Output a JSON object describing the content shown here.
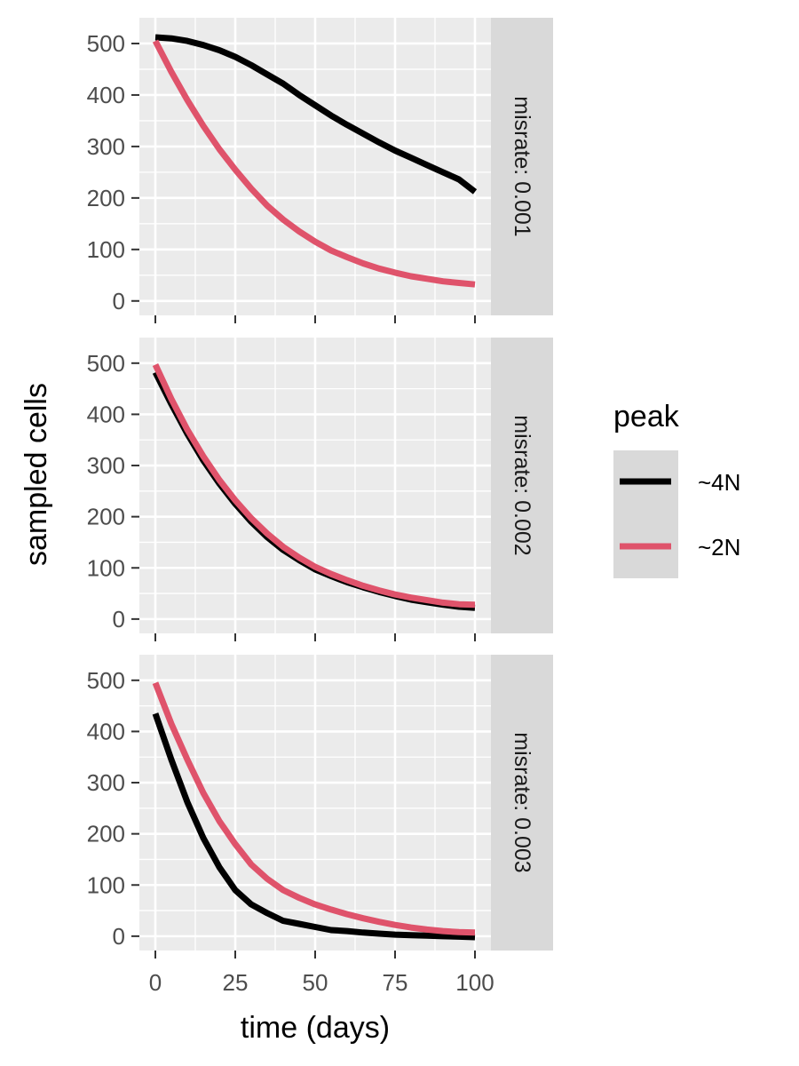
{
  "chart_data": {
    "type": "line",
    "xlabel": "time (days)",
    "ylabel": "sampled cells",
    "xlim": [
      -5,
      105
    ],
    "ylim": [
      -28,
      550
    ],
    "x_ticks": [
      0,
      25,
      50,
      75,
      100
    ],
    "x_tick_labels": [
      "0",
      "25",
      "50",
      "75",
      "100"
    ],
    "y_ticks": [
      0,
      100,
      200,
      300,
      400,
      500
    ],
    "y_tick_labels": [
      "0",
      "100",
      "200",
      "300",
      "400",
      "500"
    ],
    "grid": true,
    "legend": {
      "title": "peak",
      "placement": "right",
      "entries": [
        {
          "label": "~4N",
          "color": "#000000"
        },
        {
          "label": "~2N",
          "color": "#df536b"
        }
      ]
    },
    "x": [
      0,
      5,
      10,
      15,
      20,
      25,
      30,
      35,
      40,
      45,
      50,
      55,
      60,
      65,
      70,
      75,
      80,
      85,
      90,
      95,
      100
    ],
    "panels": [
      {
        "strip": "misrate: 0.001",
        "series": [
          {
            "name": "~4N",
            "color": "#000000",
            "values": [
              512,
              510,
              505,
              497,
              487,
              474,
              458,
              440,
              422,
              400,
              380,
              360,
              342,
              325,
              308,
              292,
              278,
              264,
              250,
              236,
              212
            ]
          },
          {
            "name": "~2N",
            "color": "#df536b",
            "values": [
              505,
              445,
              390,
              340,
              295,
              255,
              218,
              185,
              158,
              135,
              115,
              98,
              85,
              73,
              63,
              55,
              48,
              43,
              38,
              35,
              32
            ]
          }
        ]
      },
      {
        "strip": "misrate: 0.002",
        "series": [
          {
            "name": "~4N",
            "color": "#000000",
            "values": [
              482,
              420,
              362,
              310,
              265,
              225,
              190,
              160,
              135,
              115,
              97,
              84,
              72,
              62,
              53,
              45,
              38,
              33,
              28,
              24,
              22
            ]
          },
          {
            "name": "~2N",
            "color": "#df536b",
            "values": [
              497,
              430,
              370,
              318,
              272,
              232,
              197,
              167,
              141,
              120,
              102,
              88,
              76,
              65,
              56,
              48,
              42,
              37,
              32,
              29,
              28
            ]
          }
        ]
      },
      {
        "strip": "misrate: 0.003",
        "series": [
          {
            "name": "~4N",
            "color": "#000000",
            "values": [
              435,
              345,
              262,
              192,
              135,
              90,
              62,
              45,
              30,
              24,
              18,
              12,
              10,
              7,
              5,
              3,
              2,
              1,
              0,
              -1,
              -2
            ]
          },
          {
            "name": "~2N",
            "color": "#df536b",
            "values": [
              495,
              415,
              345,
              280,
              225,
              180,
              140,
              112,
              90,
              75,
              62,
              52,
              43,
              35,
              28,
              22,
              17,
              13,
              10,
              8,
              7
            ]
          }
        ]
      }
    ]
  }
}
